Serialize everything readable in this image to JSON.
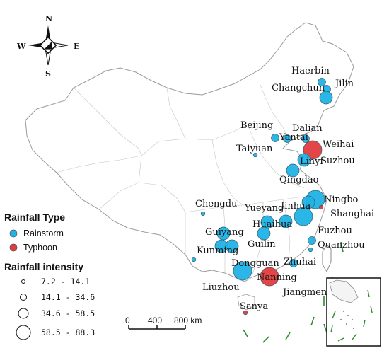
{
  "colors": {
    "rainstorm": "#1fb3e6",
    "typhoon": "#e03c3c",
    "border": "#9a9a9a",
    "land": "#ffffff",
    "island_dash": "#2e8b2e"
  },
  "compass": {
    "north": "N",
    "south": "S",
    "east": "E",
    "west": "W"
  },
  "legend": {
    "type_title": "Rainfall Type",
    "types": [
      {
        "label": "Rainstorm",
        "color_key": "rainstorm"
      },
      {
        "label": "Typhoon",
        "color_key": "typhoon"
      }
    ],
    "intensity_title": "Rainfall intensity",
    "ranges": [
      "7.2 - 14.1",
      "14.1 - 34.6",
      "34.6 - 58.5",
      "58.5 - 88.3"
    ]
  },
  "scale_bar": {
    "ticks": [
      "0",
      "400",
      "800 km"
    ]
  },
  "cities": [
    {
      "name": "Haerbin",
      "type": "rainstorm",
      "class": 1
    },
    {
      "name": "Jilin",
      "type": "rainstorm",
      "class": 1
    },
    {
      "name": "Changchun",
      "type": "rainstorm",
      "class": 2
    },
    {
      "name": "Beijing",
      "type": "rainstorm",
      "class": 1
    },
    {
      "name": "Yantai",
      "type": "rainstorm",
      "class": 1
    },
    {
      "name": "Dalian",
      "type": "rainstorm",
      "class": 1
    },
    {
      "name": "Weihai",
      "type": "typhoon",
      "class": 3
    },
    {
      "name": "Taiyuan",
      "type": "rainstorm",
      "class": 0
    },
    {
      "name": "Linyi",
      "type": "rainstorm",
      "class": 2
    },
    {
      "name": "Qingdao",
      "type": "rainstorm",
      "class": 2
    },
    {
      "name": "Suzhou",
      "type": "rainstorm",
      "class": 3
    },
    {
      "name": "Chengdu",
      "type": "rainstorm",
      "class": 0
    },
    {
      "name": "Ningbo",
      "type": "rainstorm",
      "class": 2
    },
    {
      "name": "Shanghai",
      "type": "typhoon",
      "class": 0
    },
    {
      "name": "Jinhua",
      "type": "rainstorm",
      "class": 3
    },
    {
      "name": "Yueyang",
      "type": "rainstorm",
      "class": 2
    },
    {
      "name": "Huaihua",
      "type": "rainstorm",
      "class": 2
    },
    {
      "name": "Guiyang",
      "type": "rainstorm",
      "class": 2
    },
    {
      "name": "Guilin",
      "type": "rainstorm",
      "class": 2
    },
    {
      "name": "Fuzhou",
      "type": "rainstorm",
      "class": 1
    },
    {
      "name": "Quanzhou",
      "type": "rainstorm",
      "class": 0
    },
    {
      "name": "Kunming",
      "type": "rainstorm",
      "class": 2
    },
    {
      "name": "Dongguan",
      "type": "rainstorm",
      "class": 2
    },
    {
      "name": "Zhuhai",
      "type": "rainstorm",
      "class": 1
    },
    {
      "name": "Nanning",
      "type": "typhoon",
      "class": 3
    },
    {
      "name": "Liuzhou",
      "type": "rainstorm",
      "class": 3
    },
    {
      "name": "Jiangmen",
      "type": "rainstorm",
      "class": 0
    },
    {
      "name": "Sanya",
      "type": "typhoon",
      "class": 0
    }
  ]
}
